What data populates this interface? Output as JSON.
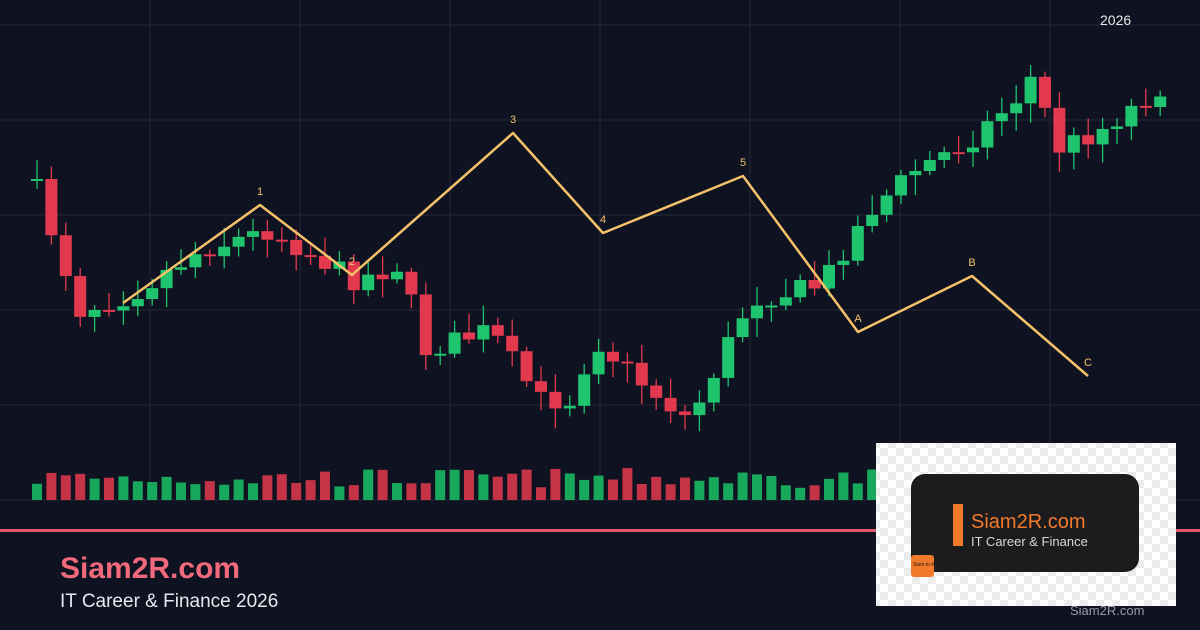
{
  "year": "2026",
  "waves": [
    "1",
    "2",
    "3",
    "4",
    "5",
    "A",
    "B",
    "C"
  ],
  "brand": {
    "title": "Siam2R.com",
    "subtitle": "IT Career & Finance 2026"
  },
  "logo": {
    "title": "Siam2R.com",
    "subtitle": "IT Career & Finance",
    "badge": "Siam to Rich"
  },
  "watermark": "Siam2R.com"
}
